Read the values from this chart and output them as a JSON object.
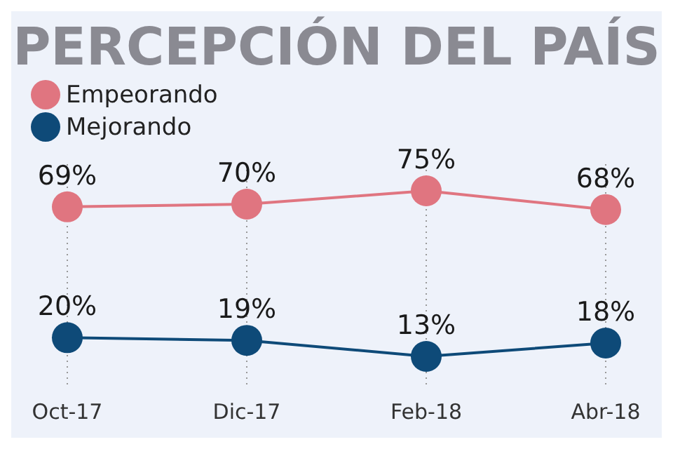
{
  "chart_data": {
    "type": "line",
    "title": "PERCEPCIÓN DEL PAÍS",
    "categories": [
      "Oct-17",
      "Dic-17",
      "Feb-18",
      "Abr-18"
    ],
    "series": [
      {
        "name": "Empeorando",
        "color": "#e07580",
        "values": [
          69,
          70,
          75,
          68
        ],
        "value_labels": [
          "69%",
          "70%",
          "75%",
          "68%"
        ]
      },
      {
        "name": "Mejorando",
        "color": "#0e4a78",
        "values": [
          20,
          19,
          13,
          18
        ],
        "value_labels": [
          "20%",
          "19%",
          "13%",
          "18%"
        ]
      }
    ],
    "tick_labels": "x",
    "marker": "circle",
    "grid": "x",
    "legend": "top left"
  }
}
